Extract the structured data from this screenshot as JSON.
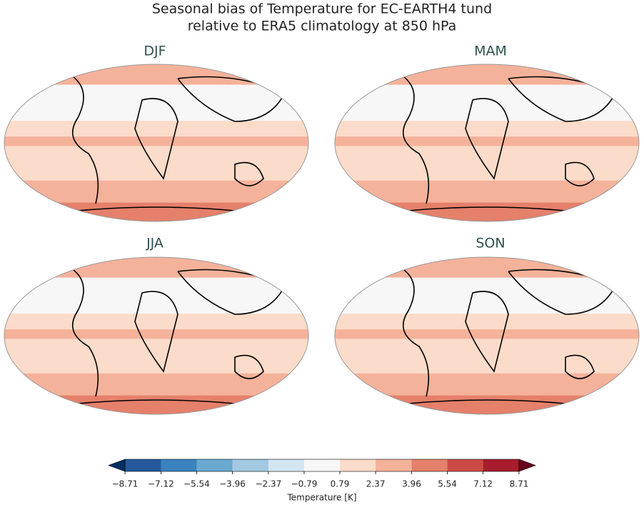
{
  "title": [
    "Seasonal bias of Temperature for EC-EARTH4 tund",
    "relative to ERA5 climatology at 850 hPa"
  ],
  "panels": [
    {
      "label": "DJF"
    },
    {
      "label": "MAM"
    },
    {
      "label": "JJA"
    },
    {
      "label": "SON"
    }
  ],
  "colorbar": {
    "label": "Temperature [K]",
    "lim": [
      -8.71,
      8.71
    ],
    "ticks": [
      {
        "value": -8.71,
        "label": "−8.71"
      },
      {
        "value": -7.12,
        "label": "−7.12"
      },
      {
        "value": -5.54,
        "label": "−5.54"
      },
      {
        "value": -3.96,
        "label": "−3.96"
      },
      {
        "value": -2.37,
        "label": "−2.37"
      },
      {
        "value": -0.79,
        "label": "−0.79"
      },
      0.79,
      2.37,
      3.96,
      5.54,
      7.12,
      8.71
    ],
    "colors": [
      "#245a9c",
      "#3b83bf",
      "#6aa9d0",
      "#a3c9e2",
      "#d3e5f0",
      "#f7f7f7",
      "#fbdbc9",
      "#f5b29a",
      "#e5806b",
      "#cc4a45",
      "#a81c2d"
    ],
    "extend_colors": [
      "#053061",
      "#67001f"
    ]
  }
}
